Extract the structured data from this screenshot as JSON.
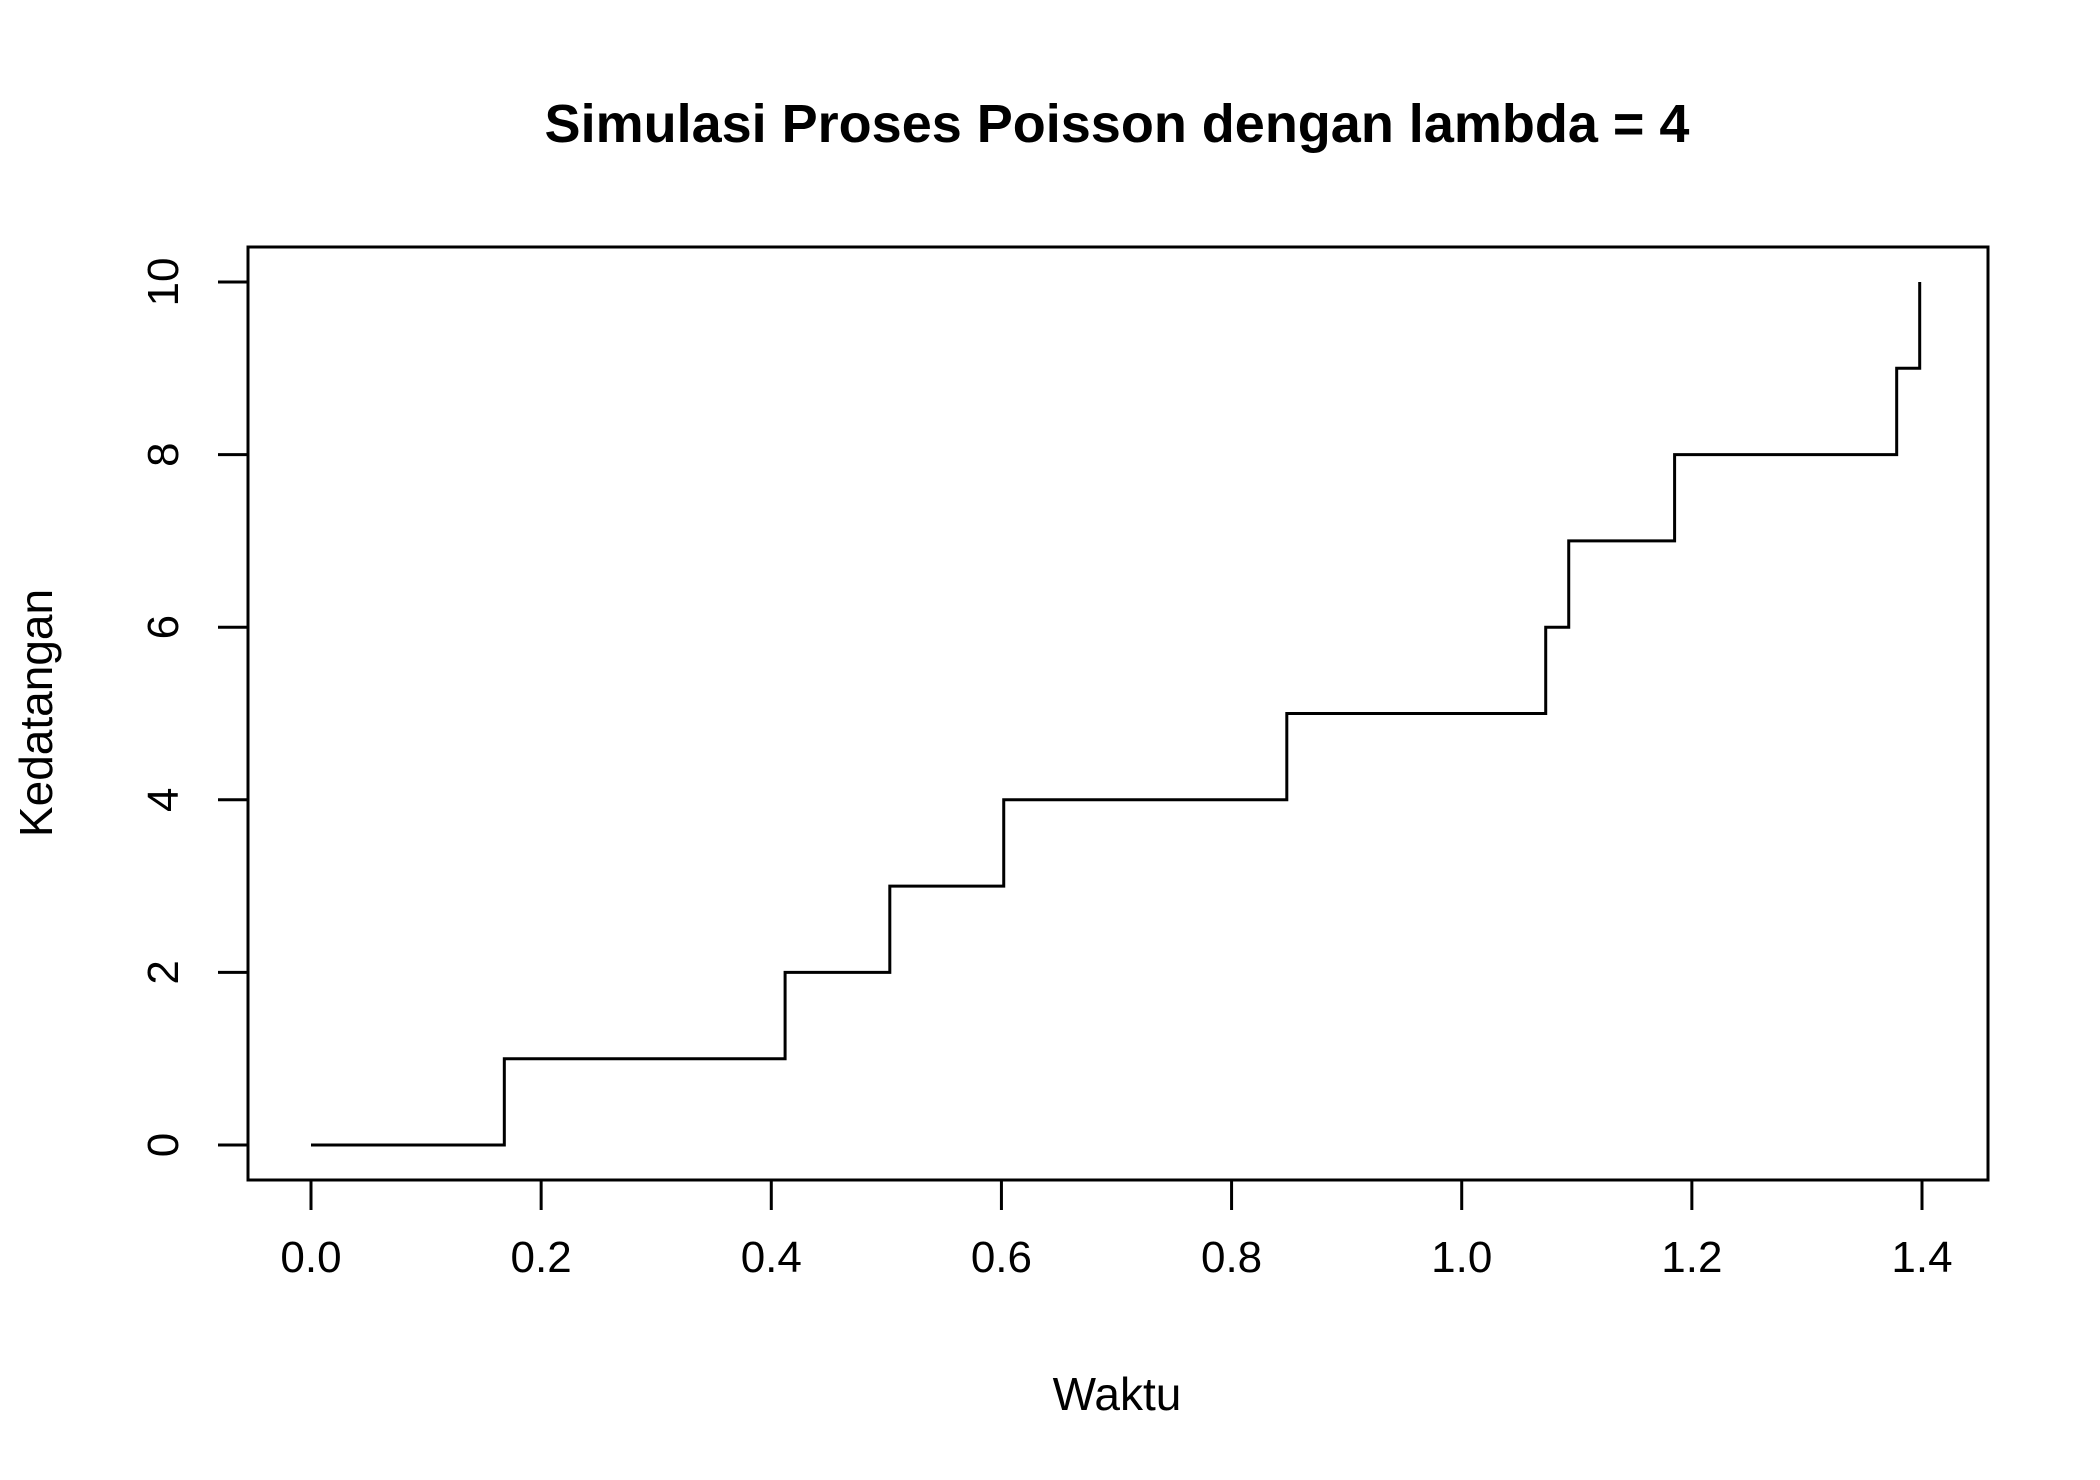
{
  "chart_data": {
    "type": "line",
    "step": true,
    "title": "Simulasi Proses Poisson dengan lambda = 4",
    "xlabel": "Waktu",
    "ylabel": "Kedatangan",
    "xlim": [
      0,
      1.4
    ],
    "ylim": [
      0,
      10
    ],
    "x_ticks": [
      "0.0",
      "0.2",
      "0.4",
      "0.6",
      "0.8",
      "1.0",
      "1.2",
      "1.4"
    ],
    "y_ticks": [
      "0",
      "2",
      "4",
      "6",
      "8",
      "10"
    ],
    "grid": false,
    "x": [
      0,
      0.168,
      0.412,
      0.503,
      0.602,
      0.848,
      1.073,
      1.093,
      1.185,
      1.378,
      1.398
    ],
    "y": [
      0,
      1,
      2,
      3,
      4,
      5,
      6,
      7,
      8,
      9,
      10
    ],
    "line_color": "#000000"
  }
}
